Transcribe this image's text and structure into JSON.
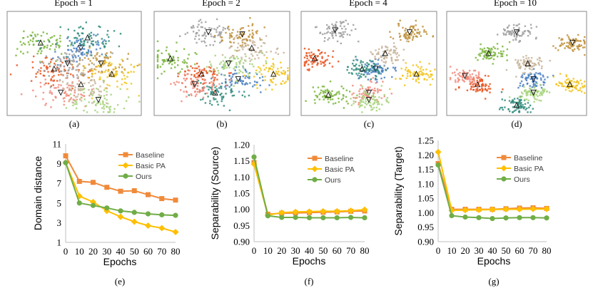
{
  "figure": {
    "panel_letters": [
      "(a)",
      "(b)",
      "(c)",
      "(d)",
      "(e)",
      "(f)",
      "(g)"
    ]
  },
  "tsne_panels": [
    {
      "title": "Epoch = 1",
      "spread": 0.95
    },
    {
      "title": "Epoch = 2",
      "spread": 0.7
    },
    {
      "title": "Epoch = 4",
      "spread": 0.5
    },
    {
      "title": "Epoch = 10",
      "spread": 0.32
    }
  ],
  "tsne_colors": [
    "#e8541e",
    "#4a7fc0",
    "#7ab539",
    "#9e9e9e",
    "#2e8b7a",
    "#c0913a",
    "#f2c318",
    "#f08a7a",
    "#c7b39a",
    "#a6d27a"
  ],
  "series_colors": {
    "Baseline": "#f08a3a",
    "Basic PA": "#ffc000",
    "Ours": "#70ad47"
  },
  "chart_data": [
    {
      "type": "line",
      "title": "",
      "xlabel": "Epochs",
      "ylabel": "Domain distance",
      "x": [
        0,
        10,
        20,
        30,
        40,
        50,
        60,
        70,
        80
      ],
      "x_tick_labels": [
        "0",
        "10",
        "20",
        "30",
        "40",
        "50",
        "60",
        "70",
        "80"
      ],
      "ylim": [
        1,
        11
      ],
      "y_ticks": [
        1,
        3,
        5,
        7,
        9,
        11
      ],
      "y_tick_labels": [
        "1",
        "3",
        "5",
        "7",
        "9",
        "11"
      ],
      "grid": false,
      "legend": "top-right",
      "series": [
        {
          "name": "Baseline",
          "marker": "square",
          "values": [
            9.8,
            7.2,
            7.1,
            6.6,
            6.2,
            6.25,
            5.85,
            5.45,
            5.3
          ]
        },
        {
          "name": "Basic PA",
          "marker": "diamond",
          "values": [
            9.1,
            5.7,
            5.1,
            4.2,
            3.6,
            3.1,
            2.7,
            2.45,
            2.05
          ]
        },
        {
          "name": "Ours",
          "marker": "circle",
          "values": [
            9.1,
            5.0,
            4.75,
            4.5,
            4.2,
            4.05,
            3.9,
            3.8,
            3.75
          ]
        }
      ]
    },
    {
      "type": "line",
      "title": "",
      "xlabel": "Epochs",
      "ylabel": "Separability (Source)",
      "x": [
        0,
        10,
        20,
        30,
        40,
        50,
        60,
        70,
        80
      ],
      "x_tick_labels": [
        "0",
        "10",
        "20",
        "30",
        "40",
        "50",
        "60",
        "70",
        "80"
      ],
      "ylim": [
        0.9,
        1.2
      ],
      "y_ticks": [
        0.9,
        0.95,
        1.0,
        1.05,
        1.1,
        1.15,
        1.2
      ],
      "y_tick_labels": [
        "0.90",
        "0.95",
        "1.00",
        "1.05",
        "1.10",
        "1.15",
        "1.20"
      ],
      "grid": false,
      "legend": "top-right",
      "series": [
        {
          "name": "Baseline",
          "marker": "square",
          "values": [
            1.145,
            0.985,
            0.988,
            0.989,
            0.99,
            0.991,
            0.992,
            0.994,
            0.995
          ]
        },
        {
          "name": "Basic PA",
          "marker": "diamond",
          "values": [
            1.14,
            0.982,
            0.99,
            0.992,
            0.993,
            0.994,
            0.994,
            0.996,
            0.999
          ]
        },
        {
          "name": "Ours",
          "marker": "circle",
          "values": [
            1.162,
            0.98,
            0.975,
            0.975,
            0.974,
            0.974,
            0.974,
            0.975,
            0.974
          ]
        }
      ]
    },
    {
      "type": "line",
      "title": "",
      "xlabel": "Epochs",
      "ylabel": "Separability (Target)",
      "x": [
        0,
        10,
        20,
        30,
        40,
        50,
        60,
        70,
        80
      ],
      "x_tick_labels": [
        "0",
        "10",
        "20",
        "30",
        "40",
        "50",
        "60",
        "70",
        "80"
      ],
      "ylim": [
        0.9,
        1.25
      ],
      "y_ticks": [
        0.9,
        0.95,
        1.0,
        1.05,
        1.1,
        1.15,
        1.2,
        1.25
      ],
      "y_tick_labels": [
        "0.90",
        "0.95",
        "1.00",
        "1.05",
        "1.10",
        "1.15",
        "1.20",
        "1.25"
      ],
      "grid": false,
      "legend": "top-right",
      "series": [
        {
          "name": "Baseline",
          "marker": "square",
          "values": [
            1.17,
            1.012,
            1.012,
            1.012,
            1.012,
            1.014,
            1.016,
            1.017,
            1.015
          ]
        },
        {
          "name": "Basic PA",
          "marker": "diamond",
          "values": [
            1.21,
            1.008,
            1.009,
            1.01,
            1.011,
            1.012,
            1.012,
            1.013,
            1.013
          ]
        },
        {
          "name": "Ours",
          "marker": "circle",
          "values": [
            1.165,
            0.99,
            0.985,
            0.983,
            0.98,
            0.982,
            0.983,
            0.983,
            0.982
          ]
        }
      ]
    }
  ]
}
